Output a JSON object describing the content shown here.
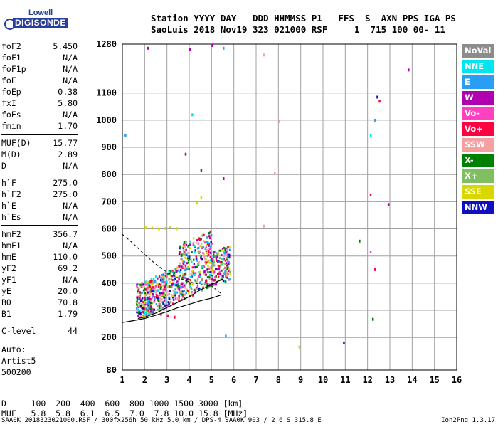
{
  "logo": {
    "line1": "Lowell",
    "line2": "DIGISONDE"
  },
  "header": {
    "line1": "Station YYYY DAY   DDD HHMMSS P1   FFS  S  AXN PPS IGA PS",
    "line2": "SaoLuis 2018 Nov19 323 021000 RSF     1  715 100 00- 11"
  },
  "params_group1": [
    {
      "label": "foF2",
      "value": "5.450"
    },
    {
      "label": "foF1",
      "value": "N/A"
    },
    {
      "label": "foF1p",
      "value": "N/A"
    },
    {
      "label": "foE",
      "value": "N/A"
    },
    {
      "label": "foEp",
      "value": "0.38"
    },
    {
      "label": "fxI",
      "value": "5.80"
    },
    {
      "label": "foEs",
      "value": "N/A"
    },
    {
      "label": "fmin",
      "value": "1.70"
    }
  ],
  "params_group2": [
    {
      "label": "MUF(D)",
      "value": "15.77"
    },
    {
      "label": "M(D)",
      "value": "2.89"
    },
    {
      "label": "D",
      "value": "N/A"
    }
  ],
  "params_group3": [
    {
      "label": "h`F",
      "value": "275.0"
    },
    {
      "label": "h`F2",
      "value": "275.0"
    },
    {
      "label": "h`E",
      "value": "N/A"
    },
    {
      "label": "h`Es",
      "value": "N/A"
    }
  ],
  "params_group4": [
    {
      "label": "hmF2",
      "value": "356.7"
    },
    {
      "label": "hmF1",
      "value": "N/A"
    },
    {
      "label": "hmE",
      "value": "110.0"
    },
    {
      "label": "yF2",
      "value": "69.2"
    },
    {
      "label": "yF1",
      "value": "N/A"
    },
    {
      "label": "yE",
      "value": "20.0"
    },
    {
      "label": "B0",
      "value": "70.8"
    },
    {
      "label": "B1",
      "value": "1.79"
    }
  ],
  "params_group5": [
    {
      "label": "C-level",
      "value": "44"
    }
  ],
  "auto_lines": [
    "Auto:",
    "Artist5",
    "500200"
  ],
  "legend": [
    {
      "label": "NoVal",
      "color": "#8c8c8c"
    },
    {
      "label": "NNE",
      "color": "#00e5ee"
    },
    {
      "label": "E",
      "color": "#2a9df4"
    },
    {
      "label": "W",
      "color": "#b000b0"
    },
    {
      "label": "Vo-",
      "color": "#ff40c0"
    },
    {
      "label": "Vo+",
      "color": "#ff0040"
    },
    {
      "label": "SSW",
      "color": "#f4a0a0"
    },
    {
      "label": "X-",
      "color": "#008000"
    },
    {
      "label": "X+",
      "color": "#7fbf5f"
    },
    {
      "label": "SSE",
      "color": "#d8d800"
    },
    {
      "label": "NNW",
      "color": "#1010c0"
    }
  ],
  "bottom": {
    "line1": "D     100  200  400  600  800 1000 1500 3000 [km]",
    "line2": "MUF   5.8  5.8  6.1  6.5  7.0  7.8 10.0 15.8 [MHz]"
  },
  "footer": {
    "left": "SAA0K_2018323021000.RSF / 300fx256h 50 kHz 5.0 km / DPS-4 SAA0K 903 / 2.6 S 315.8 E",
    "right": "Ion2Png 1.3.17"
  },
  "chart_data": {
    "type": "scatter",
    "title": "",
    "xlabel": "",
    "ylabel": "",
    "xlim": [
      1,
      16
    ],
    "ylim": [
      80,
      1280
    ],
    "x_ticks": [
      "1",
      "2",
      "3",
      "4",
      "5",
      "6",
      "7",
      "8",
      "9",
      "10",
      "11",
      "12",
      "13",
      "14",
      "15",
      "16"
    ],
    "y_ticks": [
      "80",
      "200",
      "300",
      "400",
      "500",
      "600",
      "700",
      "800",
      "900",
      "1000",
      "1100",
      "1280"
    ],
    "y_tick_values": [
      80,
      200,
      300,
      400,
      500,
      600,
      700,
      800,
      900,
      1000,
      1100,
      1280
    ],
    "grid": true,
    "profile_curve": [
      [
        1.0,
        255
      ],
      [
        1.5,
        262
      ],
      [
        2.0,
        270
      ],
      [
        2.5,
        282
      ],
      [
        3.0,
        295
      ],
      [
        3.5,
        310
      ],
      [
        4.0,
        322
      ],
      [
        4.5,
        335
      ],
      [
        5.0,
        345
      ],
      [
        5.45,
        357
      ]
    ],
    "trace_curve": [
      [
        1.7,
        270
      ],
      [
        2.0,
        275
      ],
      [
        2.5,
        290
      ],
      [
        3.0,
        310
      ],
      [
        3.5,
        330
      ],
      [
        4.0,
        350
      ],
      [
        4.5,
        375
      ],
      [
        5.0,
        395
      ],
      [
        5.5,
        415
      ]
    ],
    "dashed_curve": [
      [
        1.0,
        580
      ],
      [
        1.5,
        545
      ],
      [
        2.0,
        505
      ],
      [
        2.5,
        470
      ],
      [
        3.0,
        440
      ],
      [
        3.5,
        420
      ],
      [
        4.0,
        405
      ],
      [
        4.5,
        395
      ],
      [
        5.0,
        390
      ],
      [
        5.45,
        360
      ]
    ],
    "sample_echoes": [
      {
        "x": 2.0,
        "y": 610,
        "dir": "SSE"
      },
      {
        "x": 2.3,
        "y": 608,
        "dir": "SSE"
      },
      {
        "x": 2.6,
        "y": 605,
        "dir": "SSE"
      },
      {
        "x": 2.9,
        "y": 607,
        "dir": "SSE"
      },
      {
        "x": 3.1,
        "y": 612,
        "dir": "SSE"
      },
      {
        "x": 3.4,
        "y": 606,
        "dir": "SSE"
      },
      {
        "x": 4.3,
        "y": 700,
        "dir": "SSE"
      },
      {
        "x": 4.5,
        "y": 720,
        "dir": "SSE"
      },
      {
        "x": 1.8,
        "y": 340,
        "dir": "NNW"
      },
      {
        "x": 2.1,
        "y": 350,
        "dir": "W"
      },
      {
        "x": 2.5,
        "y": 360,
        "dir": "Vo+"
      },
      {
        "x": 2.8,
        "y": 380,
        "dir": "Vo-"
      },
      {
        "x": 3.2,
        "y": 400,
        "dir": "W"
      },
      {
        "x": 3.5,
        "y": 420,
        "dir": "Vo+"
      },
      {
        "x": 3.8,
        "y": 440,
        "dir": "X-"
      },
      {
        "x": 4.1,
        "y": 450,
        "dir": "SSE"
      },
      {
        "x": 4.4,
        "y": 430,
        "dir": "Vo-"
      },
      {
        "x": 4.7,
        "y": 410,
        "dir": "Vo+"
      },
      {
        "x": 5.0,
        "y": 420,
        "dir": "W"
      },
      {
        "x": 5.3,
        "y": 440,
        "dir": "Vo+"
      },
      {
        "x": 5.6,
        "y": 430,
        "dir": "Vo-"
      },
      {
        "x": 3.0,
        "y": 285,
        "dir": "Vo+"
      },
      {
        "x": 3.3,
        "y": 280,
        "dir": "Vo+"
      },
      {
        "x": 2.7,
        "y": 290,
        "dir": "Vo-"
      },
      {
        "x": 12.1,
        "y": 950,
        "dir": "NNE"
      },
      {
        "x": 12.4,
        "y": 1090,
        "dir": "NNW"
      },
      {
        "x": 13.8,
        "y": 1190,
        "dir": "W"
      },
      {
        "x": 12.3,
        "y": 1005,
        "dir": "E"
      },
      {
        "x": 12.5,
        "y": 1075,
        "dir": "Vo+"
      },
      {
        "x": 12.1,
        "y": 730,
        "dir": "Vo+"
      },
      {
        "x": 12.9,
        "y": 695,
        "dir": "W"
      },
      {
        "x": 11.6,
        "y": 560,
        "dir": "X-"
      },
      {
        "x": 12.1,
        "y": 520,
        "dir": "Vo-"
      },
      {
        "x": 12.3,
        "y": 455,
        "dir": "Vo+"
      },
      {
        "x": 12.2,
        "y": 272,
        "dir": "X-"
      },
      {
        "x": 10.9,
        "y": 185,
        "dir": "NNW"
      },
      {
        "x": 8.9,
        "y": 170,
        "dir": "SSE"
      },
      {
        "x": 7.3,
        "y": 615,
        "dir": "SSW"
      },
      {
        "x": 7.8,
        "y": 810,
        "dir": "SSW"
      },
      {
        "x": 8.0,
        "y": 1000,
        "dir": "SSW"
      },
      {
        "x": 7.3,
        "y": 1245,
        "dir": "SSW"
      },
      {
        "x": 5.5,
        "y": 1270,
        "dir": "E"
      },
      {
        "x": 4.0,
        "y": 1265,
        "dir": "W"
      },
      {
        "x": 5.0,
        "y": 1280,
        "dir": "W"
      },
      {
        "x": 1.1,
        "y": 950,
        "dir": "E"
      },
      {
        "x": 2.1,
        "y": 1270,
        "dir": "W"
      },
      {
        "x": 4.1,
        "y": 1025,
        "dir": "NNE"
      },
      {
        "x": 5.5,
        "y": 790,
        "dir": "W"
      },
      {
        "x": 5.6,
        "y": 210,
        "dir": "E"
      },
      {
        "x": 4.5,
        "y": 820,
        "dir": "X-"
      },
      {
        "x": 3.8,
        "y": 880,
        "dir": "W"
      }
    ]
  }
}
